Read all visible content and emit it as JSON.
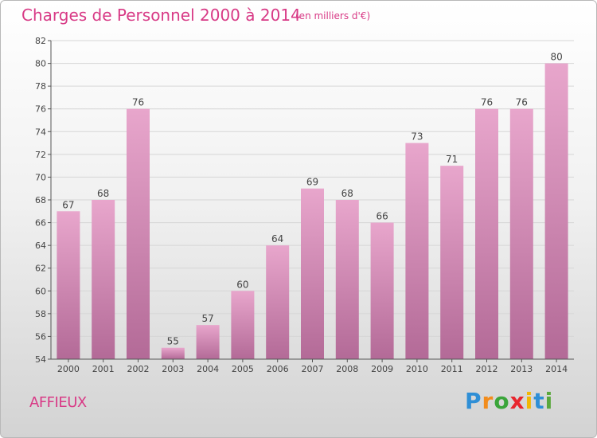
{
  "header": {
    "title": "Charges de Personnel 2000 à 2014",
    "subtitle": "(en milliers d'€)"
  },
  "footer": {
    "commune": "AFFIEUX",
    "logo": {
      "text": "Proxiti",
      "letters": [
        "P",
        "r",
        "o",
        "x",
        "i",
        "t",
        "i"
      ],
      "colors": [
        "#2f8fd6",
        "#f28c1c",
        "#3aa53a",
        "#e8262e",
        "#f2b705",
        "#2f8fd6",
        "#5aa83c"
      ]
    }
  },
  "colors": {
    "accent": "#d83a86",
    "bar_top": "#e8a6cc",
    "bar_bottom": "#b36a97",
    "axis": "#555555",
    "grid": "#d6d6d6"
  },
  "chart_data": {
    "type": "bar",
    "title": "Charges de Personnel 2000 à 2014",
    "subtitle": "(en milliers d'€)",
    "categories": [
      "2000",
      "2001",
      "2002",
      "2003",
      "2004",
      "2005",
      "2006",
      "2007",
      "2008",
      "2009",
      "2010",
      "2011",
      "2012",
      "2013",
      "2014"
    ],
    "values": [
      67,
      68,
      76,
      55,
      57,
      60,
      64,
      69,
      68,
      66,
      73,
      71,
      76,
      76,
      80
    ],
    "ylim": [
      54,
      82
    ],
    "yticks": [
      54,
      56,
      58,
      60,
      62,
      64,
      66,
      68,
      70,
      72,
      74,
      76,
      78,
      80,
      82
    ],
    "grid": true,
    "data_labels": true
  }
}
